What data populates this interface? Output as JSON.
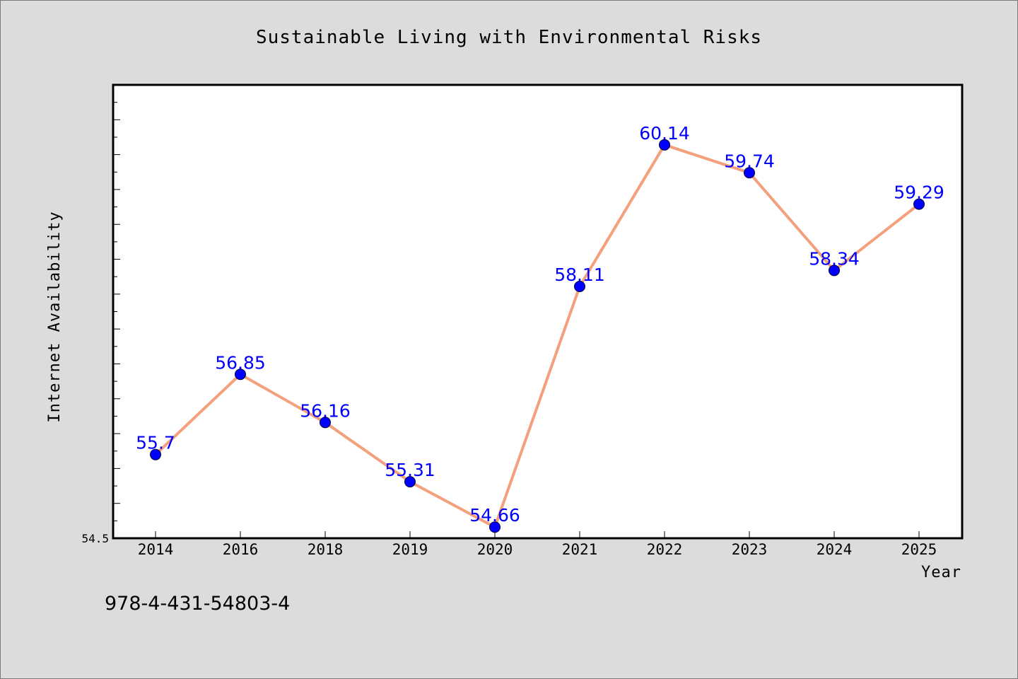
{
  "chart_data": {
    "type": "line",
    "title": "Sustainable Living with Environmental Risks",
    "xlabel": "Year",
    "ylabel": "Internet Availability",
    "categories": [
      "2014",
      "2016",
      "2018",
      "2019",
      "2020",
      "2021",
      "2022",
      "2023",
      "2024",
      "2025"
    ],
    "series": [
      {
        "values": [
          55.7,
          56.85,
          56.16,
          55.31,
          54.66,
          58.11,
          60.14,
          59.74,
          58.34,
          59.29
        ]
      }
    ],
    "data_labels": [
      "55.7",
      "56.85",
      "56.16",
      "55.31",
      "54.66",
      "58.11",
      "60.14",
      "59.74",
      "58.34",
      "59.29"
    ],
    "ylim": [
      54.5,
      61.0
    ],
    "y_tick_labels": [
      "54.5"
    ],
    "grid": false,
    "legend": "none",
    "colors": {
      "line": "#f4a07c",
      "marker": "#0000ff",
      "data_label": "#0000ff",
      "background": "#dcdcdc",
      "plot_background": "#ffffff"
    }
  },
  "footer_text": "978-4-431-54803-4"
}
